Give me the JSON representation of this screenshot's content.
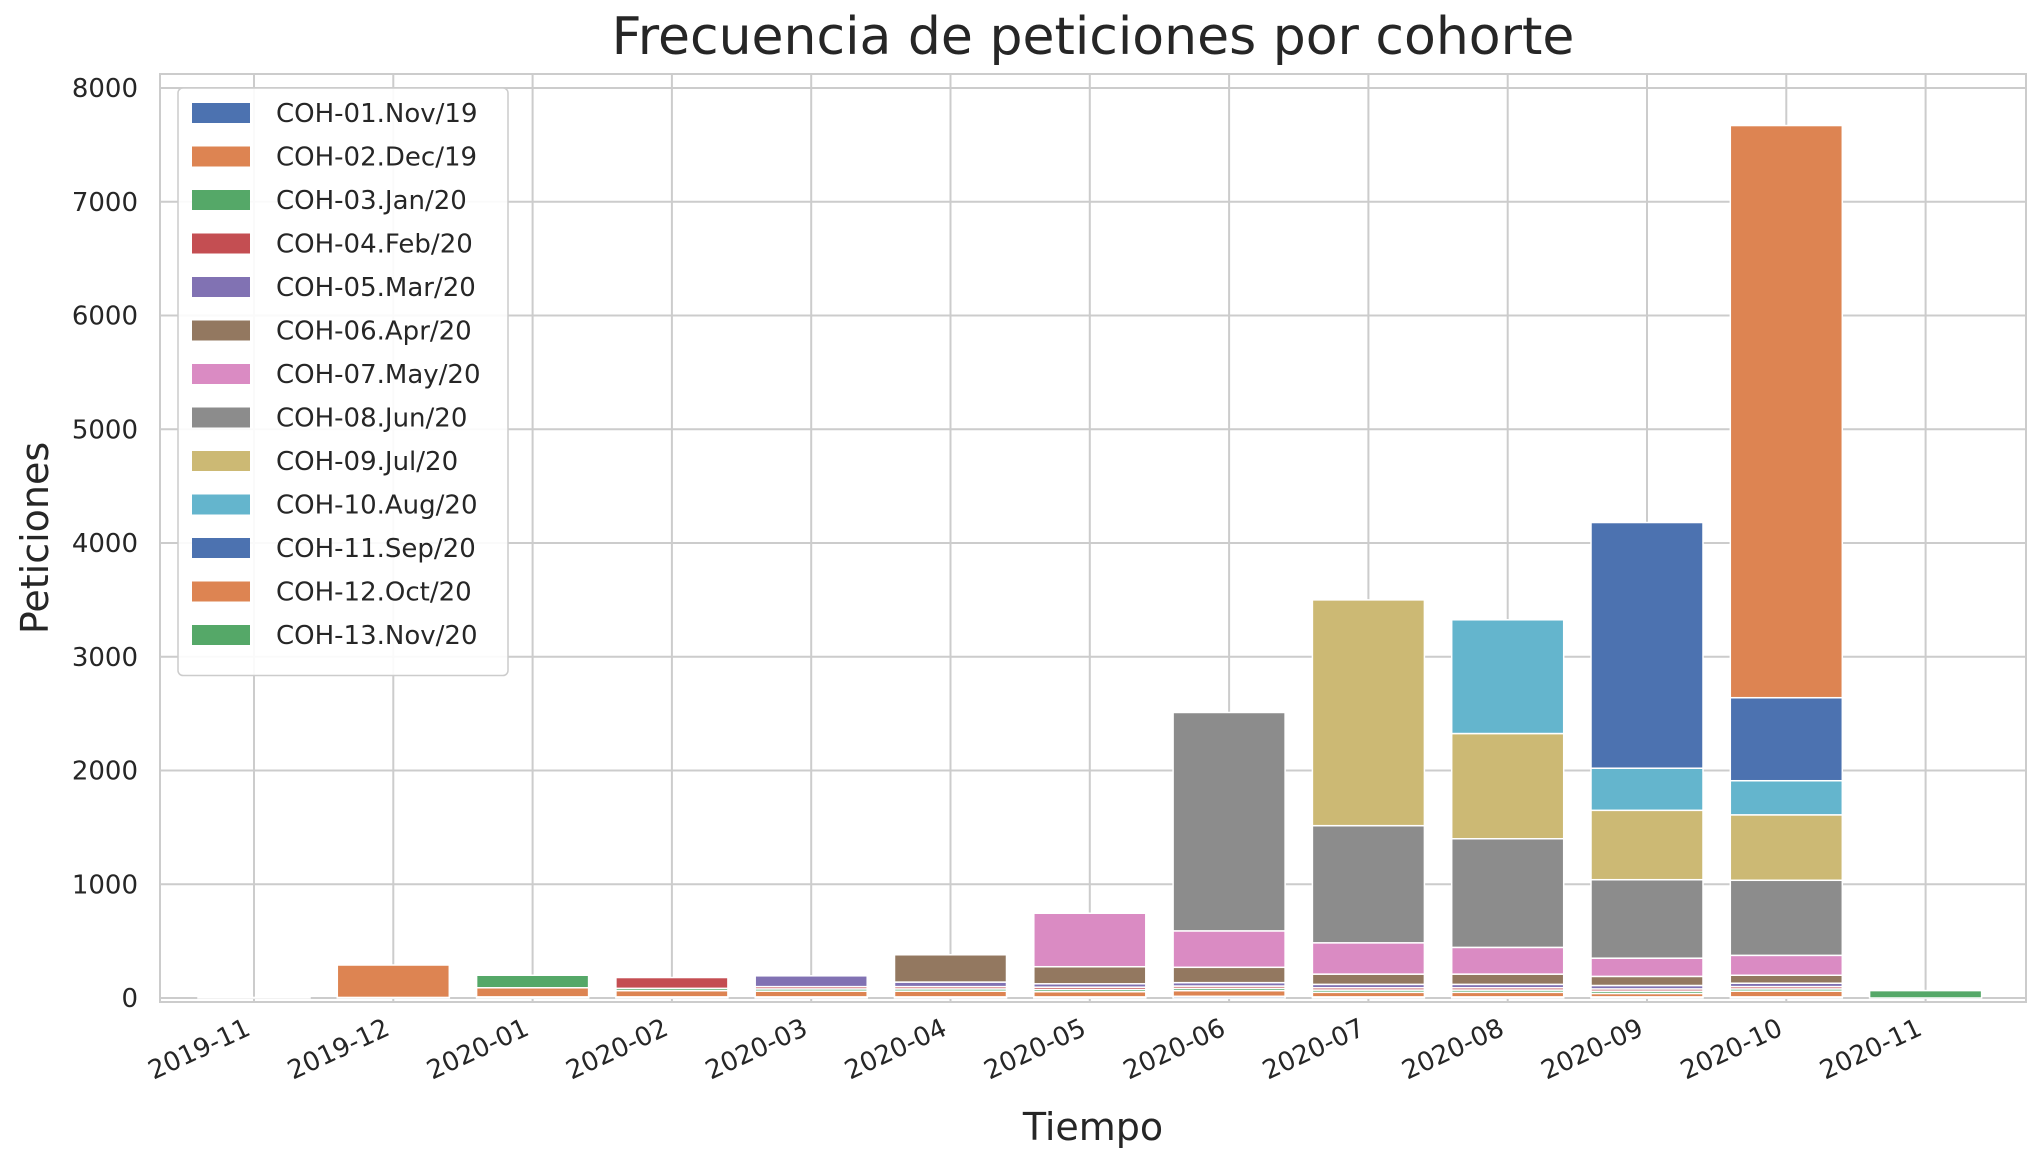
{
  "chart_data": {
    "type": "bar",
    "stacked": true,
    "title": "Frecuencia de peticiones por cohorte",
    "xlabel": "Tiempo",
    "ylabel": "Peticiones",
    "ylim": [
      0,
      8000
    ],
    "yticks": [
      0,
      1000,
      2000,
      3000,
      4000,
      5000,
      6000,
      7000,
      8000
    ],
    "grid": true,
    "legend_position": "top-left",
    "categories": [
      "2019-11",
      "2019-12",
      "2020-01",
      "2020-02",
      "2020-03",
      "2020-04",
      "2020-05",
      "2020-06",
      "2020-07",
      "2020-08",
      "2020-09",
      "2020-10",
      "2020-11"
    ],
    "series": [
      {
        "name": "COH-01.Nov/19",
        "color": "#4C72B0",
        "values": [
          5,
          5,
          10,
          10,
          10,
          10,
          10,
          15,
          10,
          10,
          10,
          10,
          0
        ]
      },
      {
        "name": "COH-02.Dec/19",
        "color": "#DD8452",
        "values": [
          0,
          285,
          80,
          55,
          50,
          50,
          45,
          50,
          40,
          40,
          30,
          50,
          0
        ]
      },
      {
        "name": "COH-03.Jan/20",
        "color": "#55A868",
        "values": [
          0,
          0,
          110,
          20,
          20,
          20,
          20,
          20,
          20,
          20,
          20,
          20,
          0
        ]
      },
      {
        "name": "COH-04.Feb/20",
        "color": "#C44E52",
        "values": [
          0,
          0,
          0,
          95,
          20,
          20,
          20,
          20,
          20,
          20,
          20,
          20,
          0
        ]
      },
      {
        "name": "COH-05.Mar/20",
        "color": "#8172B3",
        "values": [
          0,
          0,
          0,
          0,
          95,
          40,
          30,
          30,
          30,
          30,
          30,
          30,
          0
        ]
      },
      {
        "name": "COH-06.Apr/20",
        "color": "#937860",
        "values": [
          0,
          0,
          0,
          0,
          0,
          240,
          150,
          135,
          90,
          90,
          80,
          70,
          0
        ]
      },
      {
        "name": "COH-07.May/20",
        "color": "#DA8BC3",
        "values": [
          0,
          0,
          0,
          0,
          0,
          0,
          470,
          320,
          275,
          235,
          160,
          175,
          0
        ]
      },
      {
        "name": "COH-08.Jun/20",
        "color": "#8C8C8C",
        "values": [
          0,
          0,
          0,
          0,
          0,
          0,
          0,
          1920,
          1030,
          955,
          690,
          660,
          0
        ]
      },
      {
        "name": "COH-09.Jul/20",
        "color": "#CCB974",
        "values": [
          0,
          0,
          0,
          0,
          0,
          0,
          0,
          0,
          1985,
          925,
          610,
          575,
          0
        ]
      },
      {
        "name": "COH-10.Aug/20",
        "color": "#64B5CD",
        "values": [
          0,
          0,
          0,
          0,
          0,
          0,
          0,
          0,
          0,
          1000,
          370,
          300,
          0
        ]
      },
      {
        "name": "COH-11.Sep/20",
        "color": "#4C72B0",
        "values": [
          0,
          0,
          0,
          0,
          0,
          0,
          0,
          0,
          0,
          0,
          2160,
          730,
          0
        ]
      },
      {
        "name": "COH-12.Oct/20",
        "color": "#DD8452",
        "values": [
          0,
          0,
          0,
          0,
          0,
          0,
          0,
          0,
          0,
          0,
          0,
          5030,
          0
        ]
      },
      {
        "name": "COH-13.Nov/20",
        "color": "#55A868",
        "values": [
          0,
          0,
          0,
          0,
          0,
          0,
          0,
          0,
          0,
          0,
          0,
          0,
          65
        ]
      }
    ]
  }
}
